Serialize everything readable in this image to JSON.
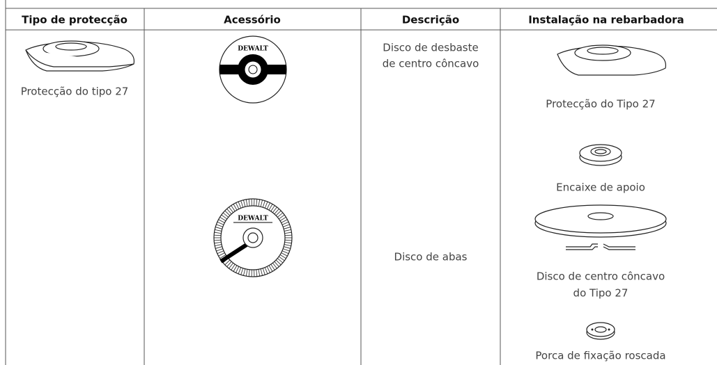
{
  "table": {
    "headers": [
      "Tipo de protecção",
      "Acessório",
      "Descrição",
      "Instalação na rebarbadora"
    ],
    "guard_type": "Protecção do tipo 27",
    "logo": "DEWALT",
    "descriptions": [
      [
        "Disco de desbaste",
        "de centro côncavo"
      ],
      [
        "Disco de abas"
      ]
    ],
    "installation": [
      [
        "Protecção do Tipo 27"
      ],
      [
        "Encaixe de apoio"
      ],
      [
        "Disco de centro côncavo",
        "do Tipo 27"
      ],
      [
        "Porca de fixação roscada"
      ]
    ]
  }
}
